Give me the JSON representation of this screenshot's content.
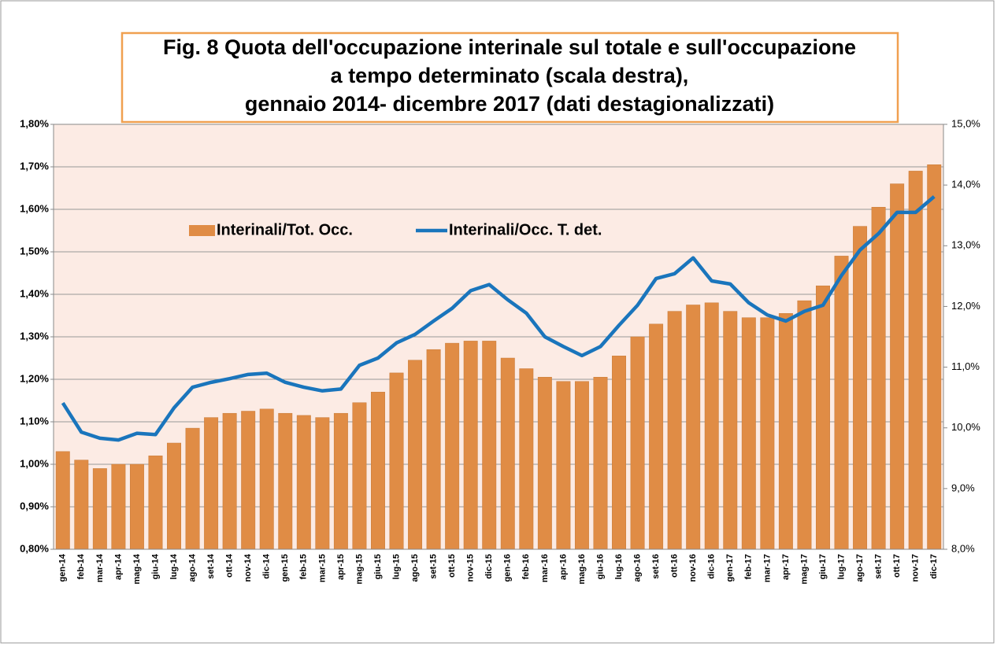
{
  "chart_data": {
    "type": "bar+line",
    "title": [
      "Fig. 8  Quota dell'occupazione interinale sul totale e sull'occupazione",
      "a tempo determinato (scala destra),",
      "gennaio 2014- dicembre 2017 (dati destagionalizzati)"
    ],
    "categories": [
      "gen-14",
      "feb-14",
      "mar-14",
      "apr-14",
      "mag-14",
      "giu-14",
      "lug-14",
      "ago-14",
      "set-14",
      "ott-14",
      "nov-14",
      "dic-14",
      "gen-15",
      "feb-15",
      "mar-15",
      "apr-15",
      "mag-15",
      "giu-15",
      "lug-15",
      "ago-15",
      "set-15",
      "ott-15",
      "nov-15",
      "dic-15",
      "gen-16",
      "feb-16",
      "mar-16",
      "apr-16",
      "mag-16",
      "giu-16",
      "lug-16",
      "ago-16",
      "set-16",
      "ott-16",
      "nov-16",
      "dic-16",
      "gen-17",
      "feb-17",
      "mar-17",
      "apr-17",
      "mag-17",
      "giu-17",
      "lug-17",
      "ago-17",
      "set-17",
      "ott-17",
      "nov-17",
      "dic-17"
    ],
    "series": [
      {
        "name": "Interinali/Tot. Occ.",
        "type": "bar",
        "color": "#e08c45",
        "values": [
          1.03,
          1.01,
          0.99,
          1.0,
          1.0,
          1.02,
          1.05,
          1.085,
          1.11,
          1.12,
          1.125,
          1.13,
          1.12,
          1.115,
          1.11,
          1.12,
          1.145,
          1.17,
          1.215,
          1.245,
          1.27,
          1.285,
          1.29,
          1.29,
          1.25,
          1.225,
          1.205,
          1.195,
          1.195,
          1.205,
          1.255,
          1.3,
          1.33,
          1.36,
          1.375,
          1.38,
          1.36,
          1.345,
          1.345,
          1.355,
          1.385,
          1.42,
          1.49,
          1.56,
          1.605,
          1.66,
          1.69,
          1.705
        ]
      },
      {
        "name": "Interinali/Occ. T. det.",
        "type": "line",
        "axis": "y2",
        "color": "#1a75bc",
        "values": [
          10.41,
          9.93,
          9.83,
          9.8,
          9.91,
          9.89,
          10.33,
          10.67,
          10.75,
          10.81,
          10.88,
          10.9,
          10.75,
          10.67,
          10.61,
          10.64,
          11.03,
          11.15,
          11.4,
          11.54,
          11.76,
          11.97,
          12.26,
          12.36,
          12.11,
          11.89,
          11.5,
          11.34,
          11.19,
          11.34,
          11.69,
          12.02,
          12.46,
          12.54,
          12.8,
          12.42,
          12.37,
          12.06,
          11.86,
          11.76,
          11.92,
          12.02,
          12.51,
          12.93,
          13.2,
          13.55,
          13.55,
          13.81
        ]
      }
    ],
    "ylim": [
      0.8,
      1.8
    ],
    "yticks": [
      {
        "value": 0.8,
        "label": "0,80%"
      },
      {
        "value": 0.9,
        "label": "0,90%"
      },
      {
        "value": 1.0,
        "label": "1,00%"
      },
      {
        "value": 1.1,
        "label": "1,10%"
      },
      {
        "value": 1.2,
        "label": "1,20%"
      },
      {
        "value": 1.3,
        "label": "1,30%"
      },
      {
        "value": 1.4,
        "label": "1,40%"
      },
      {
        "value": 1.5,
        "label": "1,50%"
      },
      {
        "value": 1.6,
        "label": "1,60%"
      },
      {
        "value": 1.7,
        "label": "1,70%"
      },
      {
        "value": 1.8,
        "label": "1,80%"
      }
    ],
    "y2lim": [
      8,
      15
    ],
    "y2ticks": [
      {
        "value": 8,
        "label": "8,0%"
      },
      {
        "value": 9,
        "label": "9,0%"
      },
      {
        "value": 10,
        "label": "10,0%"
      },
      {
        "value": 11,
        "label": "11,0%"
      },
      {
        "value": 12,
        "label": "12,0%"
      },
      {
        "value": 13,
        "label": "13,0%"
      },
      {
        "value": 14,
        "label": "14,0%"
      },
      {
        "value": 15,
        "label": "15,0%"
      }
    ],
    "grid": true,
    "legend": "top-left"
  }
}
